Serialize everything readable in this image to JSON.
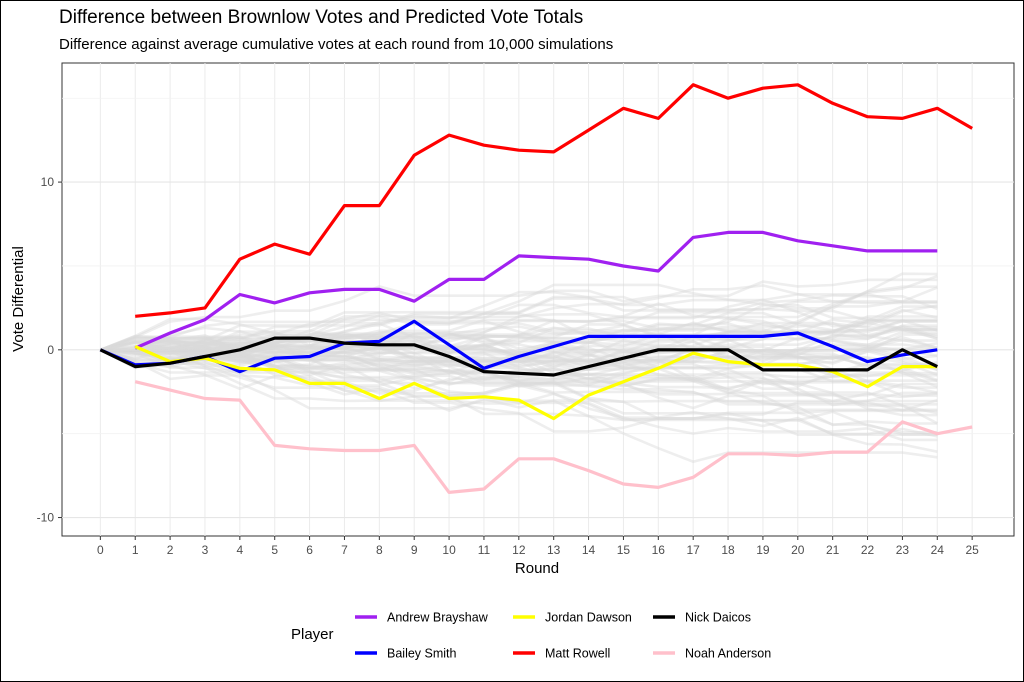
{
  "chart_data": {
    "type": "line",
    "title": "Difference between Brownlow Votes and Predicted Vote Totals",
    "subtitle": "Difference against average cumulative votes at each round from 10,000 simulations",
    "xlabel": "Round",
    "ylabel": "Vote Differential",
    "xlim": [
      -1.1,
      26.2
    ],
    "ylim": [
      -11.1,
      17.1
    ],
    "x_ticks": [
      0,
      1,
      2,
      3,
      4,
      5,
      6,
      7,
      8,
      9,
      10,
      11,
      12,
      13,
      14,
      15,
      16,
      17,
      18,
      19,
      20,
      21,
      22,
      23,
      24,
      25
    ],
    "y_ticks": [
      -10,
      0,
      10
    ],
    "grid": true,
    "legend": {
      "title": "Player",
      "position": "bottom"
    },
    "series": [
      {
        "name": "Andrew Brayshaw",
        "color": "#A020F0",
        "x": [
          1,
          2,
          3,
          4,
          5,
          6,
          7,
          8,
          9,
          10,
          11,
          12,
          13,
          14,
          15,
          16,
          17,
          18,
          19,
          20,
          21,
          22,
          23,
          24
        ],
        "y": [
          0.1,
          1.0,
          1.8,
          3.3,
          2.8,
          3.4,
          3.6,
          3.6,
          2.9,
          4.2,
          4.2,
          5.6,
          5.5,
          5.4,
          5.0,
          4.7,
          6.7,
          7.0,
          7.0,
          6.5,
          6.2,
          5.9,
          5.9,
          5.9
        ]
      },
      {
        "name": "Bailey Smith",
        "color": "#0000FF",
        "x": [
          0,
          1,
          2,
          3,
          4,
          5,
          6,
          7,
          8,
          9,
          10,
          11,
          12,
          13,
          14,
          15,
          16,
          17,
          18,
          19,
          20,
          21,
          22,
          23,
          24
        ],
        "y": [
          0,
          -0.9,
          -0.8,
          -0.4,
          -1.3,
          -0.5,
          -0.4,
          0.4,
          0.5,
          1.7,
          0.3,
          -1.1,
          -0.4,
          0.2,
          0.8,
          0.8,
          0.8,
          0.8,
          0.8,
          0.8,
          1.0,
          0.2,
          -0.7,
          -0.3,
          0.0
        ]
      },
      {
        "name": "Jordan Dawson",
        "color": "#FFFF00",
        "x": [
          1,
          2,
          3,
          4,
          5,
          6,
          7,
          8,
          9,
          10,
          11,
          12,
          13,
          14,
          15,
          16,
          17,
          18,
          19,
          20,
          21,
          22,
          23,
          24
        ],
        "y": [
          0.2,
          -0.7,
          -0.5,
          -1.1,
          -1.2,
          -2.0,
          -2.0,
          -2.9,
          -2.0,
          -2.9,
          -2.8,
          -3.0,
          -4.1,
          -2.7,
          -1.9,
          -1.1,
          -0.2,
          -0.7,
          -0.9,
          -0.9,
          -1.3,
          -2.2,
          -1.0,
          -1.0
        ]
      },
      {
        "name": "Matt Rowell",
        "color": "#FF0000",
        "x": [
          1,
          2,
          3,
          4,
          5,
          6,
          7,
          8,
          9,
          10,
          11,
          12,
          13,
          14,
          15,
          16,
          17,
          18,
          19,
          20,
          21,
          22,
          23,
          24,
          25
        ],
        "y": [
          2.0,
          2.2,
          2.5,
          5.4,
          6.3,
          5.7,
          8.6,
          8.6,
          11.6,
          12.8,
          12.2,
          11.9,
          11.8,
          13.1,
          14.4,
          13.8,
          15.8,
          15.0,
          15.6,
          15.8,
          14.7,
          13.9,
          13.8,
          14.4,
          13.2
        ]
      },
      {
        "name": "Nick Daicos",
        "color": "#000000",
        "x": [
          0,
          1,
          2,
          3,
          4,
          5,
          6,
          7,
          8,
          9,
          10,
          11,
          12,
          13,
          14,
          15,
          16,
          17,
          18,
          19,
          20,
          21,
          22,
          23,
          24
        ],
        "y": [
          0,
          -1.0,
          -0.8,
          -0.4,
          0.0,
          0.7,
          0.7,
          0.4,
          0.3,
          0.3,
          -0.4,
          -1.3,
          -1.4,
          -1.5,
          -1.0,
          -0.5,
          0.0,
          0.0,
          0.0,
          -1.2,
          -1.2,
          -1.2,
          -1.2,
          0.0,
          -1.0
        ]
      },
      {
        "name": "Noah Anderson",
        "color": "#FFC0CB",
        "x": [
          1,
          2,
          3,
          4,
          5,
          6,
          7,
          8,
          9,
          10,
          11,
          12,
          13,
          14,
          15,
          16,
          17,
          18,
          19,
          20,
          21,
          22,
          23,
          24,
          25
        ],
        "y": [
          -1.9,
          -2.4,
          -2.9,
          -3.0,
          -5.7,
          -5.9,
          -6.0,
          -6.0,
          -5.7,
          -8.5,
          -8.3,
          -6.5,
          -6.5,
          -7.2,
          -8.0,
          -8.2,
          -7.6,
          -6.2,
          -6.2,
          -6.3,
          -6.1,
          -6.1,
          -4.3,
          -5.0,
          -4.6
        ]
      }
    ]
  }
}
